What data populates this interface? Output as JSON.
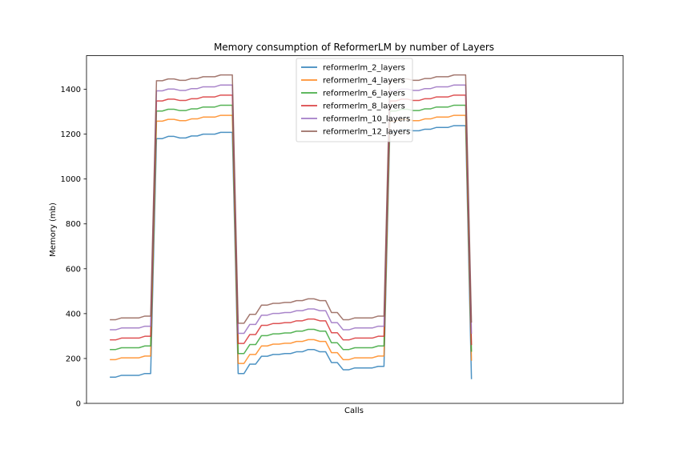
{
  "chart_data": {
    "type": "line",
    "title": "Memory consumption of ReformerLM by number of Layers",
    "xlabel": "Calls",
    "ylabel": "Memory (mb)",
    "ylim": [
      0,
      1550
    ],
    "xlim": [
      -4,
      88
    ],
    "yticks": [
      0,
      200,
      400,
      600,
      800,
      1000,
      1200,
      1400
    ],
    "grid": false,
    "legend_placement": "upper center",
    "series": [
      {
        "name": "reformerlm_2_layers",
        "color": "#1f77b4",
        "values": [
          117,
          117,
          125,
          125,
          125,
          125,
          133,
          133,
          1180,
          1180,
          1190,
          1190,
          1183,
          1183,
          1192,
          1192,
          1200,
          1200,
          1200,
          1208,
          1208,
          1208,
          133,
          133,
          175,
          175,
          210,
          210,
          218,
          218,
          222,
          222,
          230,
          230,
          240,
          240,
          230,
          230,
          182,
          182,
          150,
          150,
          158,
          158,
          158,
          158,
          165,
          165,
          1210,
          1210,
          1220,
          1220,
          1215,
          1215,
          1222,
          1222,
          1230,
          1230,
          1230,
          1238,
          1238,
          1238,
          108
        ]
      },
      {
        "name": "reformerlm_4_layers",
        "color": "#ff7f0e",
        "values": [
          195,
          195,
          203,
          203,
          203,
          203,
          211,
          211,
          1258,
          1258,
          1266,
          1266,
          1260,
          1260,
          1268,
          1268,
          1276,
          1276,
          1276,
          1284,
          1284,
          1284,
          178,
          178,
          218,
          218,
          256,
          256,
          264,
          264,
          268,
          268,
          276,
          276,
          284,
          284,
          276,
          276,
          226,
          226,
          195,
          195,
          203,
          203,
          203,
          203,
          211,
          211,
          1258,
          1258,
          1266,
          1266,
          1260,
          1260,
          1268,
          1268,
          1276,
          1276,
          1276,
          1284,
          1284,
          1284,
          190
        ]
      },
      {
        "name": "reformerlm_6_layers",
        "color": "#2ca02c",
        "values": [
          240,
          240,
          248,
          248,
          248,
          248,
          256,
          256,
          1303,
          1303,
          1311,
          1311,
          1305,
          1305,
          1313,
          1313,
          1321,
          1321,
          1321,
          1329,
          1329,
          1329,
          222,
          222,
          262,
          262,
          302,
          302,
          310,
          310,
          314,
          314,
          322,
          322,
          330,
          330,
          322,
          322,
          270,
          270,
          240,
          240,
          248,
          248,
          248,
          248,
          256,
          256,
          1303,
          1303,
          1311,
          1311,
          1305,
          1305,
          1313,
          1313,
          1321,
          1321,
          1321,
          1329,
          1329,
          1329,
          230
        ]
      },
      {
        "name": "reformerlm_8_layers",
        "color": "#d62728",
        "values": [
          283,
          283,
          291,
          291,
          291,
          291,
          299,
          299,
          1348,
          1348,
          1356,
          1356,
          1350,
          1350,
          1358,
          1358,
          1366,
          1366,
          1366,
          1374,
          1374,
          1374,
          267,
          267,
          307,
          307,
          348,
          348,
          356,
          356,
          360,
          360,
          368,
          368,
          376,
          376,
          368,
          368,
          315,
          315,
          283,
          283,
          291,
          291,
          291,
          291,
          299,
          299,
          1348,
          1348,
          1356,
          1356,
          1350,
          1350,
          1358,
          1358,
          1366,
          1366,
          1366,
          1374,
          1374,
          1374,
          260
        ]
      },
      {
        "name": "reformerlm_10_layers",
        "color": "#9467bd",
        "values": [
          328,
          328,
          336,
          336,
          336,
          336,
          344,
          344,
          1393,
          1393,
          1401,
          1401,
          1395,
          1395,
          1403,
          1403,
          1411,
          1411,
          1411,
          1419,
          1419,
          1419,
          312,
          312,
          352,
          352,
          393,
          393,
          401,
          401,
          405,
          405,
          413,
          413,
          421,
          421,
          413,
          413,
          360,
          360,
          328,
          328,
          336,
          336,
          336,
          336,
          344,
          344,
          1393,
          1393,
          1401,
          1401,
          1395,
          1395,
          1403,
          1403,
          1411,
          1411,
          1411,
          1419,
          1419,
          1419,
          310
        ]
      },
      {
        "name": "reformerlm_12_layers",
        "color": "#8c564b",
        "values": [
          373,
          373,
          381,
          381,
          381,
          381,
          389,
          389,
          1438,
          1438,
          1446,
          1446,
          1440,
          1440,
          1448,
          1448,
          1456,
          1456,
          1456,
          1464,
          1464,
          1464,
          357,
          357,
          397,
          397,
          438,
          438,
          446,
          446,
          450,
          450,
          458,
          458,
          466,
          466,
          458,
          458,
          405,
          405,
          373,
          373,
          381,
          381,
          381,
          381,
          389,
          389,
          1438,
          1438,
          1446,
          1446,
          1440,
          1440,
          1448,
          1448,
          1456,
          1456,
          1456,
          1464,
          1464,
          1464,
          360
        ]
      }
    ]
  }
}
